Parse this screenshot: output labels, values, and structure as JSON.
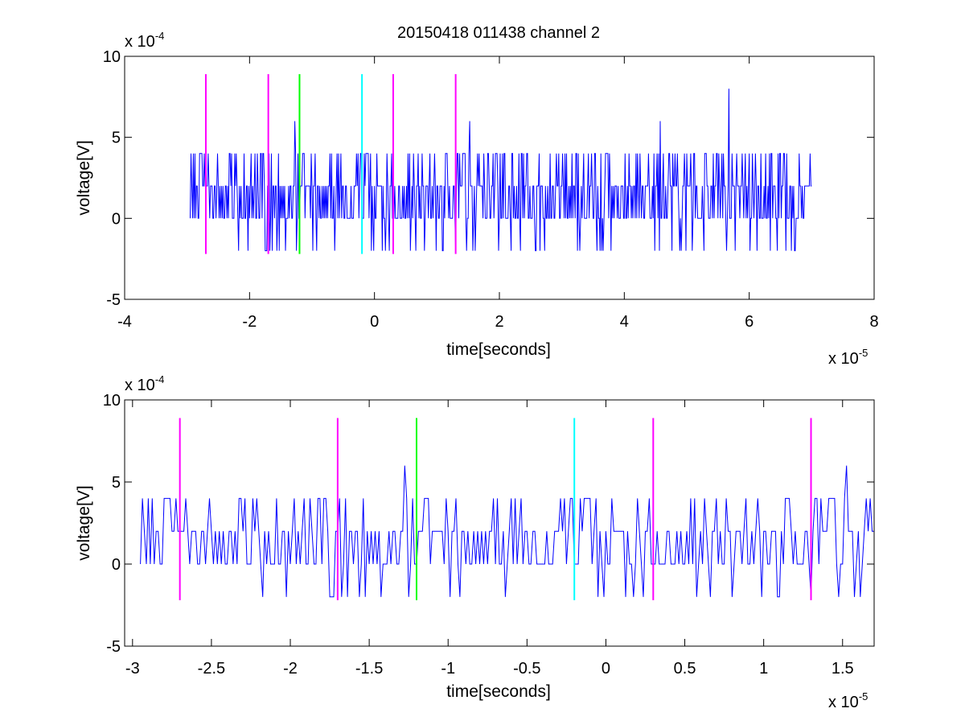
{
  "figure_title": "20150418 011438 channel 2",
  "colors": {
    "signal": "#0000ff",
    "magenta": "#ff00ff",
    "green": "#00ff00",
    "cyan": "#00ffff",
    "axes": "#000000"
  },
  "chart_data": [
    {
      "type": "line",
      "title": "20150418 011438 channel 2",
      "xlabel": "time[seconds]",
      "ylabel": "voltage[V]",
      "x_multiplier": "x 10",
      "x_exponent": "-5",
      "y_multiplier": "x 10",
      "y_exponent": "-4",
      "xlim": [
        -4,
        8
      ],
      "ylim": [
        -5,
        10
      ],
      "xticks": [
        "-4",
        "-2",
        "0",
        "2",
        "4",
        "6",
        "8"
      ],
      "xtick_values": [
        -4,
        -2,
        0,
        2,
        4,
        6,
        8
      ],
      "yticks": [
        "-5",
        "0",
        "5",
        "10"
      ],
      "ytick_values": [
        -5,
        0,
        5,
        10
      ],
      "grid": false,
      "signal": {
        "x_start": -2.95,
        "x_end": 7.0,
        "levels": [
          -2,
          0,
          2,
          4
        ],
        "peaks": [
          [
            -1.27,
            6
          ],
          [
            1.52,
            6
          ],
          [
            4.57,
            6
          ],
          [
            5.68,
            8
          ]
        ]
      },
      "markers": [
        {
          "x": -2.7,
          "y0": -2.2,
          "y1": 8.9,
          "color": "magenta"
        },
        {
          "x": -1.7,
          "y0": -2.2,
          "y1": 8.9,
          "color": "magenta"
        },
        {
          "x": -1.2,
          "y0": -2.2,
          "y1": 8.9,
          "color": "green"
        },
        {
          "x": -0.2,
          "y0": -2.2,
          "y1": 8.9,
          "color": "cyan"
        },
        {
          "x": 0.3,
          "y0": -2.2,
          "y1": 8.9,
          "color": "magenta"
        },
        {
          "x": 1.3,
          "y0": -2.2,
          "y1": 8.9,
          "color": "magenta"
        }
      ]
    },
    {
      "type": "line",
      "title": "",
      "xlabel": "time[seconds]",
      "ylabel": "voltage[V]",
      "x_multiplier": "x 10",
      "x_exponent": "-5",
      "y_multiplier": "x 10",
      "y_exponent": "-4",
      "xlim": [
        -3.05,
        1.7
      ],
      "ylim": [
        -5,
        10
      ],
      "xticks": [
        "-3",
        "-2.5",
        "-2",
        "-1.5",
        "-1",
        "-0.5",
        "0",
        "0.5",
        "1",
        "1.5"
      ],
      "xtick_values": [
        -3,
        -2.5,
        -2,
        -1.5,
        -1,
        -0.5,
        0,
        0.5,
        1,
        1.5
      ],
      "yticks": [
        "-5",
        "0",
        "5",
        "10"
      ],
      "ytick_values": [
        -5,
        0,
        5,
        10
      ],
      "grid": false,
      "signal": {
        "x_start": -2.95,
        "x_end": 1.7,
        "levels": [
          -2,
          0,
          2,
          4
        ],
        "peaks": [
          [
            -1.27,
            6
          ],
          [
            1.52,
            6
          ]
        ]
      },
      "markers": [
        {
          "x": -2.7,
          "y0": -2.2,
          "y1": 8.9,
          "color": "magenta"
        },
        {
          "x": -1.7,
          "y0": -2.2,
          "y1": 8.9,
          "color": "magenta"
        },
        {
          "x": -1.2,
          "y0": -2.2,
          "y1": 8.9,
          "color": "green"
        },
        {
          "x": -0.2,
          "y0": -2.2,
          "y1": 8.9,
          "color": "cyan"
        },
        {
          "x": 0.3,
          "y0": -2.2,
          "y1": 8.9,
          "color": "magenta"
        },
        {
          "x": 1.3,
          "y0": -2.2,
          "y1": 8.9,
          "color": "magenta"
        }
      ]
    }
  ]
}
